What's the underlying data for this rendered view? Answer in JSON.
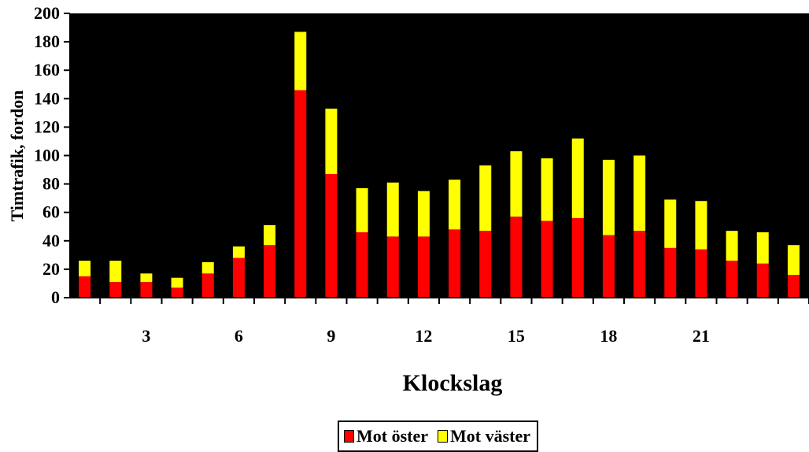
{
  "chart_data": {
    "type": "bar",
    "stacked": true,
    "title": "",
    "xlabel": "Klockslag",
    "ylabel": "Timtrafik, fordon",
    "ylim": [
      0,
      200
    ],
    "yticks": [
      0,
      20,
      40,
      60,
      80,
      100,
      120,
      140,
      160,
      180,
      200
    ],
    "xtick_labels": [
      "3",
      "6",
      "9",
      "12",
      "15",
      "18",
      "21"
    ],
    "xtick_positions": [
      3,
      6,
      9,
      12,
      15,
      18,
      21
    ],
    "categories": [
      1,
      2,
      3,
      4,
      5,
      6,
      7,
      8,
      9,
      10,
      11,
      12,
      13,
      14,
      15,
      16,
      17,
      18,
      19,
      20,
      21,
      22,
      23,
      24
    ],
    "series": [
      {
        "name": "Mot öster",
        "color": "#ff0000",
        "values": [
          15,
          11,
          11,
          7,
          17,
          28,
          37,
          146,
          87,
          46,
          43,
          43,
          48,
          47,
          57,
          54,
          56,
          44,
          47,
          35,
          34,
          26,
          24,
          16
        ]
      },
      {
        "name": "Mot väster",
        "color": "#ffff00",
        "values": [
          11,
          15,
          6,
          7,
          8,
          8,
          14,
          41,
          46,
          31,
          38,
          32,
          35,
          46,
          46,
          44,
          56,
          53,
          53,
          34,
          34,
          21,
          22,
          21
        ]
      }
    ],
    "plot_background": "#000000",
    "grid": false,
    "legend_position": "bottom"
  }
}
